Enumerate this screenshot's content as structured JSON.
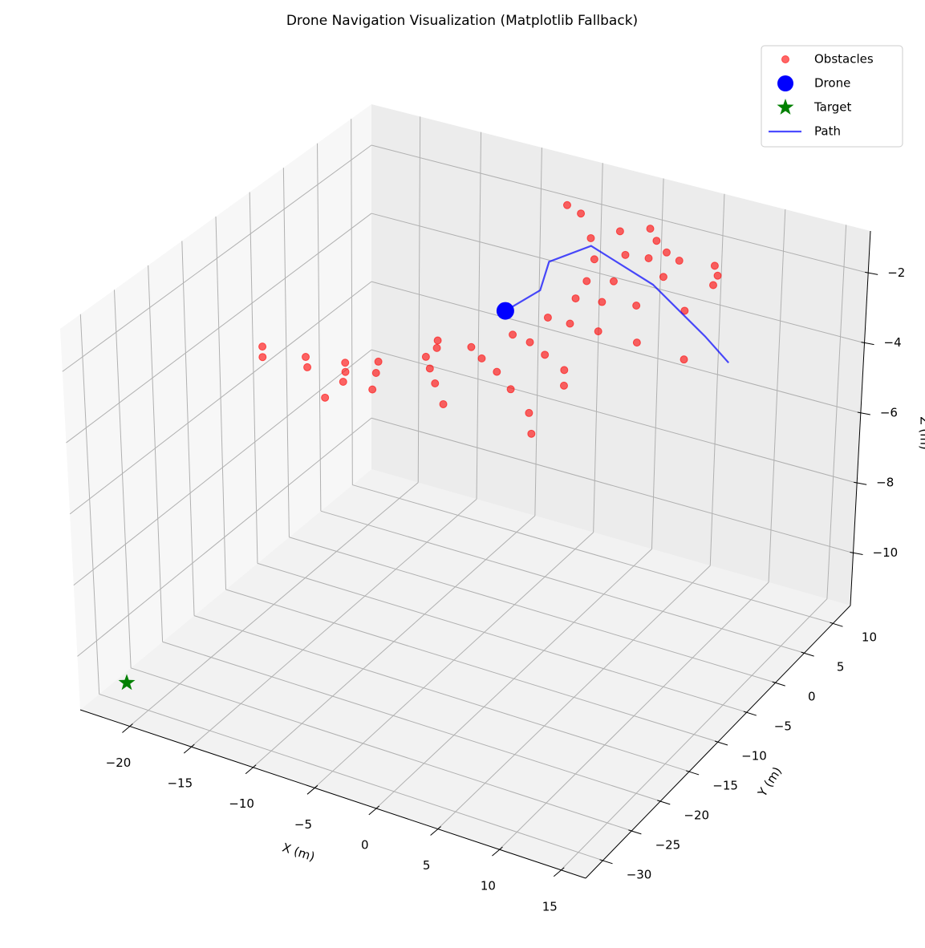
{
  "chart_data": {
    "type": "scatter3d",
    "title": "Drone Navigation Visualization (Matplotlib Fallback)",
    "xlabel": "X (m)",
    "ylabel": "Y (m)",
    "zlabel": "Z (m)",
    "xlim": [
      -24,
      17
    ],
    "ylim": [
      -33,
      13
    ],
    "zlim": [
      -11.5,
      -0.8
    ],
    "xticks": [
      {
        "value": -20,
        "label": "−20"
      },
      {
        "value": -15,
        "label": "−15"
      },
      {
        "value": -10,
        "label": "−10"
      },
      {
        "value": -5,
        "label": "−5"
      },
      0,
      5,
      10,
      15
    ],
    "yticks": [
      {
        "value": -30,
        "label": "−30"
      },
      {
        "value": -25,
        "label": "−25"
      },
      {
        "value": -20,
        "label": "−20"
      },
      {
        "value": -15,
        "label": "−15"
      },
      {
        "value": -10,
        "label": "−10"
      },
      {
        "value": -5,
        "label": "−5"
      },
      0,
      5,
      10
    ],
    "zticks": [
      {
        "value": -10,
        "label": "−10"
      },
      {
        "value": -8,
        "label": "−8"
      },
      {
        "value": -6,
        "label": "−6"
      },
      {
        "value": -4,
        "label": "−4"
      },
      {
        "value": -2,
        "label": "−2"
      }
    ],
    "grid": true,
    "legend": "upper right",
    "series": [
      {
        "name": "Obstacles",
        "color": "#ff0000",
        "marker": "circle",
        "x": [
          -7.1,
          -5.6,
          -3.1,
          -1.8,
          -0.1,
          1.2,
          2.7,
          4.1,
          0.3,
          2.0,
          -1.3,
          -2.7,
          -1.0,
          1.8,
          6.7,
          7.6,
          8.0,
          -2.1,
          -0.2,
          2.2,
          5.6,
          -2.4,
          -0.6,
          1.7,
          4.9,
          6.6,
          -3.3,
          -1.7,
          -2.4,
          -0.1,
          1.0,
          -2.0,
          -4.1,
          -6.0,
          -4.9,
          -7.4,
          -6.9,
          -9.5,
          -8.4,
          -7.0,
          -5.0,
          0.8,
          2.4,
          -12.0,
          -11.3,
          -10.3,
          -13.9,
          -13.2,
          -12.6,
          -12.5,
          -14.0,
          -15.8,
          -17.3,
          -16.5
        ],
        "y": [
          11.6,
          10.9,
          7.7,
          9.8,
          11.3,
          9.8,
          8.5,
          7.8,
          6.6,
          7.0,
          4.8,
          6.4,
          7.4,
          9.9,
          8.4,
          7.1,
          5.6,
          3.5,
          4.0,
          4.8,
          5.9,
          -0.3,
          -0.3,
          -0.3,
          -0.4,
          4.0,
          -4.1,
          -4.5,
          -0.7,
          -2.1,
          -4.3,
          -6.9,
          -5.0,
          -3.7,
          -7.5,
          -7.9,
          -9.0,
          -5.7,
          -7.2,
          -9.1,
          -11.7,
          -9.5,
          -12.3,
          -8.3,
          -10.0,
          -12.5,
          -9.8,
          -11.1,
          -12.6,
          -15.6,
          -15.6,
          -12.0,
          -15.9,
          -17.4
        ],
        "z": [
          -2,
          -2,
          -2,
          -2,
          -2,
          -2,
          -2,
          -2,
          -2,
          -2,
          -2,
          -3,
          -3,
          -3,
          -2,
          -2,
          -2,
          -3,
          -3,
          -3,
          -3,
          -3,
          -3,
          -3,
          -3,
          -4,
          -3,
          -3,
          -4,
          -4,
          -4,
          -4,
          -4,
          -4,
          -3,
          -3,
          -3,
          -4,
          -4,
          -4,
          -4,
          -4,
          -4,
          -4,
          -4,
          -4,
          -4,
          -4,
          -4,
          -4,
          -3,
          -4,
          -3,
          -3
        ]
      },
      {
        "name": "Drone",
        "color": "#0000ff",
        "marker": "circle",
        "x": [
          -5.5
        ],
        "y": [
          -1.0
        ],
        "z": [
          -3
        ]
      },
      {
        "name": "Target",
        "color": "#008000",
        "marker": "star",
        "x": [
          -20.6
        ],
        "y": [
          -32.0
        ],
        "z": [
          -10.5
        ]
      },
      {
        "name": "Path",
        "color": "#0000ff",
        "marker": "line",
        "x": [
          -5.5,
          -4.9,
          -3.9,
          -2.5,
          4.2,
          11.1,
          14.4
        ],
        "y": [
          -1.0,
          3.3,
          2.7,
          6.6,
          3.4,
          -1.9,
          -4.7
        ],
        "z": [
          -3,
          -3,
          -2,
          -2,
          -2,
          -2,
          -2
        ]
      }
    ]
  }
}
